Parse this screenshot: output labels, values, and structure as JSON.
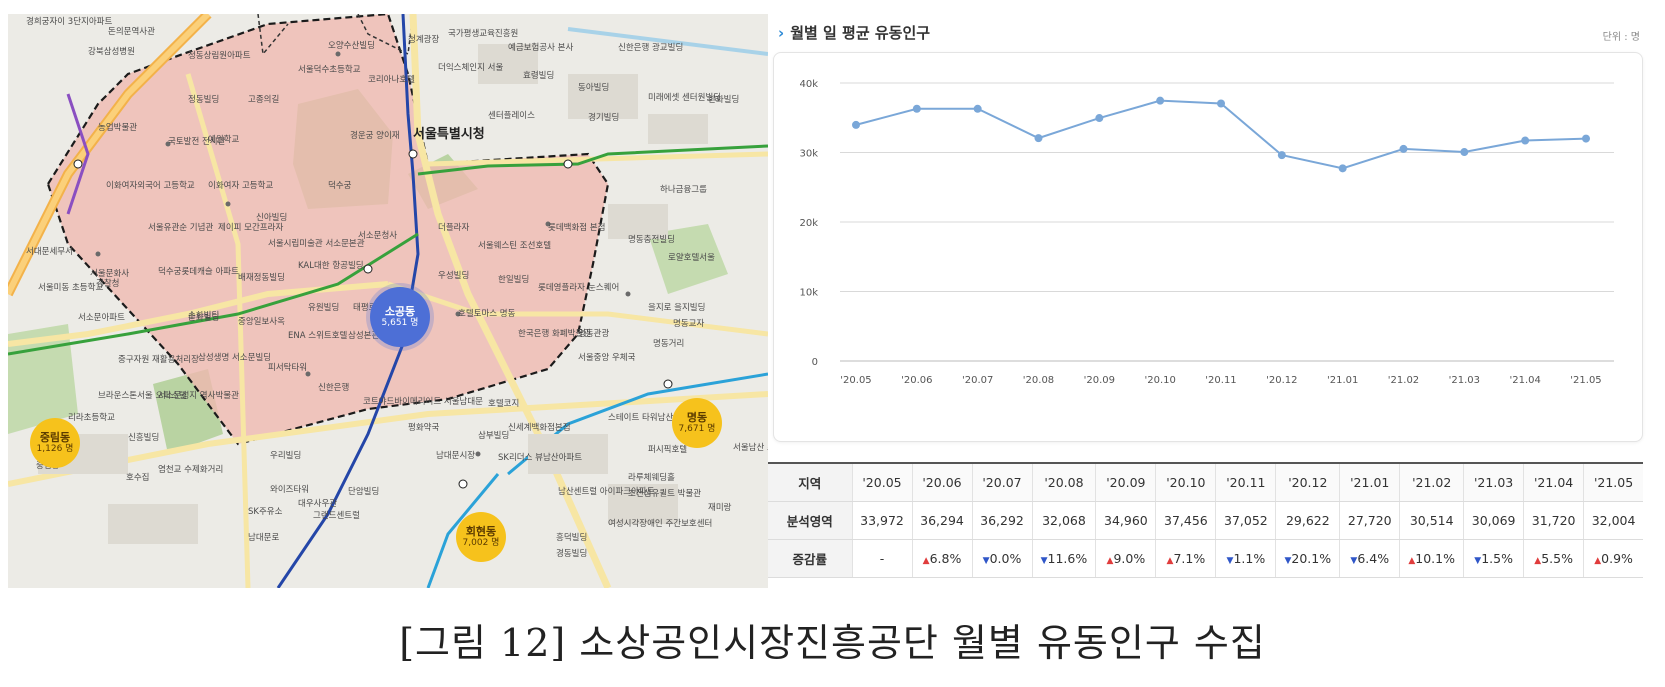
{
  "map": {
    "district_label": "서울특별시청",
    "labels": [
      "경희궁자이 3단지아파트",
      "돈의문역사관",
      "강북삼성병원",
      "정동상림원아파트",
      "오양수산빌딩",
      "서울덕수초등학교",
      "청계광장",
      "국가평생교육진흥원",
      "예금보험공사 본사",
      "신한은행 광교빌딩",
      "정동빌딩",
      "고종의길",
      "코리아나호텔",
      "더익스체인지 서울",
      "효령빌딩",
      "동아빌딩",
      "미래에셋 센터원빌딩",
      "한화빌딩",
      "농업박물관",
      "국토발전 전시관",
      "예원학교",
      "덕수궁",
      "경운궁 양이재",
      "센터플레이스",
      "경기빌딩",
      "이화여자외국어 고등학교",
      "이화여자 고등학교",
      "신아빌딩",
      "더플라자",
      "서울웨스틴 조선호텔",
      "롯데백화점 본점",
      "명동충전빌딩",
      "로얄호텔서울",
      "서울유관순 기념관",
      "제이피 모간프라자",
      "서소문청사",
      "서울시립미술관 서소문본관",
      "덕수궁롯데캐슬 아파트",
      "배재정동빌딩",
      "KAL대한 항공빌딩",
      "우성빌딩",
      "한일빌딩",
      "롯데영플라자",
      "눈스퀘어",
      "을지로 을지빌딩",
      "서울문화사",
      "서소문아파트",
      "순화빌딩",
      "중앙일보사옥",
      "유원빌딩",
      "태평로빌딩",
      "호텔토마스 명동",
      "한국은행 화폐박물관",
      "명동거리",
      "명동교자",
      "ENA 스위트호텔",
      "삼성본관빌딩",
      "삼성생명 서소문빌딩",
      "피서탁타워",
      "신한은행",
      "코트야드바이메리어트 서울남대문",
      "호텔코지",
      "명동관광",
      "서울중앙 우체국",
      "스테이트 타워남산",
      "신세계백화점본점",
      "남대문시장",
      "SK리더스 뷰남산아파트",
      "우리빌딩",
      "와이즈타워",
      "대우사우관",
      "단암빌딩",
      "그랜드센트럴",
      "SK주유소",
      "남대문로",
      "회현동",
      "남산센트럴 아이파크아파트",
      "초전섬유퀼트 박물관",
      "재미랑",
      "여성시각장애인 주간보호센터",
      "흥덕빌딩",
      "경동빌딩",
      "퍼시픽호텔",
      "라루체웨딩홀",
      "서울남산 초등학교",
      "서대문세무서",
      "경찰청",
      "서울미동 초등학교",
      "중구자원 재활용처리장",
      "브라운스톤서울 오피스텔",
      "서소문성지 역사박물관",
      "리라초등학교",
      "신흥빌딩",
      "호수집",
      "염천교 수제화거리",
      "중림동",
      "순화빌딩",
      "평화약국",
      "삼부빌딩",
      "하나금융그룹"
    ]
  },
  "bubbles": [
    {
      "name": "소공동",
      "value": "5,651 명",
      "style": "blue"
    },
    {
      "name": "명동",
      "value": "7,671 명",
      "style": "yellow"
    },
    {
      "name": "중림동",
      "value": "1,126 명",
      "style": "yellow"
    },
    {
      "name": "회현동",
      "value": "7,002 명",
      "style": "yellow"
    }
  ],
  "chart_header": {
    "chevron": "›",
    "title": "월별 일 평균 유동인구",
    "unit": "단위 : 명"
  },
  "chart_data": {
    "type": "line",
    "title": "월별 일 평균 유동인구",
    "xlabel": "",
    "ylabel": "",
    "categories": [
      "'20.05",
      "'20.06",
      "'20.07",
      "'20.08",
      "'20.09",
      "'20.10",
      "'20.11",
      "'20.12",
      "'21.01",
      "'21.02",
      "'21.03",
      "'21.04",
      "'21.05"
    ],
    "series": [
      {
        "values": [
          33972,
          36294,
          36292,
          32068,
          34960,
          37456,
          37052,
          29622,
          27720,
          30514,
          30069,
          31720,
          32004
        ]
      }
    ],
    "ylim": [
      0,
      40000
    ],
    "yticks": [
      0,
      10000,
      20000,
      30000,
      40000
    ],
    "ytick_labels": [
      "0",
      "10k",
      "20k",
      "30k",
      "40k"
    ],
    "grid": true,
    "line_color": "#7aa7d8"
  },
  "table": {
    "header_label": "지역",
    "row1_label": "분석영역",
    "row2_label": "증감률",
    "months": [
      "'20.05",
      "'20.06",
      "'20.07",
      "'20.08",
      "'20.09",
      "'20.10",
      "'20.11",
      "'20.12",
      "'21.01",
      "'21.02",
      "'21.03",
      "'21.04",
      "'21.05"
    ],
    "values": [
      "33,972",
      "36,294",
      "36,292",
      "32,068",
      "34,960",
      "37,456",
      "37,052",
      "29,622",
      "27,720",
      "30,514",
      "30,069",
      "31,720",
      "32,004"
    ],
    "rates": [
      {
        "dir": "none",
        "text": "-"
      },
      {
        "dir": "up",
        "text": "6.8%"
      },
      {
        "dir": "down",
        "text": "0.0%"
      },
      {
        "dir": "down",
        "text": "11.6%"
      },
      {
        "dir": "up",
        "text": "9.0%"
      },
      {
        "dir": "up",
        "text": "7.1%"
      },
      {
        "dir": "down",
        "text": "1.1%"
      },
      {
        "dir": "down",
        "text": "20.1%"
      },
      {
        "dir": "down",
        "text": "6.4%"
      },
      {
        "dir": "up",
        "text": "10.1%"
      },
      {
        "dir": "down",
        "text": "1.5%"
      },
      {
        "dir": "up",
        "text": "5.5%"
      },
      {
        "dir": "up",
        "text": "0.9%"
      }
    ],
    "up_arrow": "▲",
    "down_arrow": "▼"
  },
  "caption": "[그림 12] 소상공인시장진흥공단 월별 유동인구 수집"
}
